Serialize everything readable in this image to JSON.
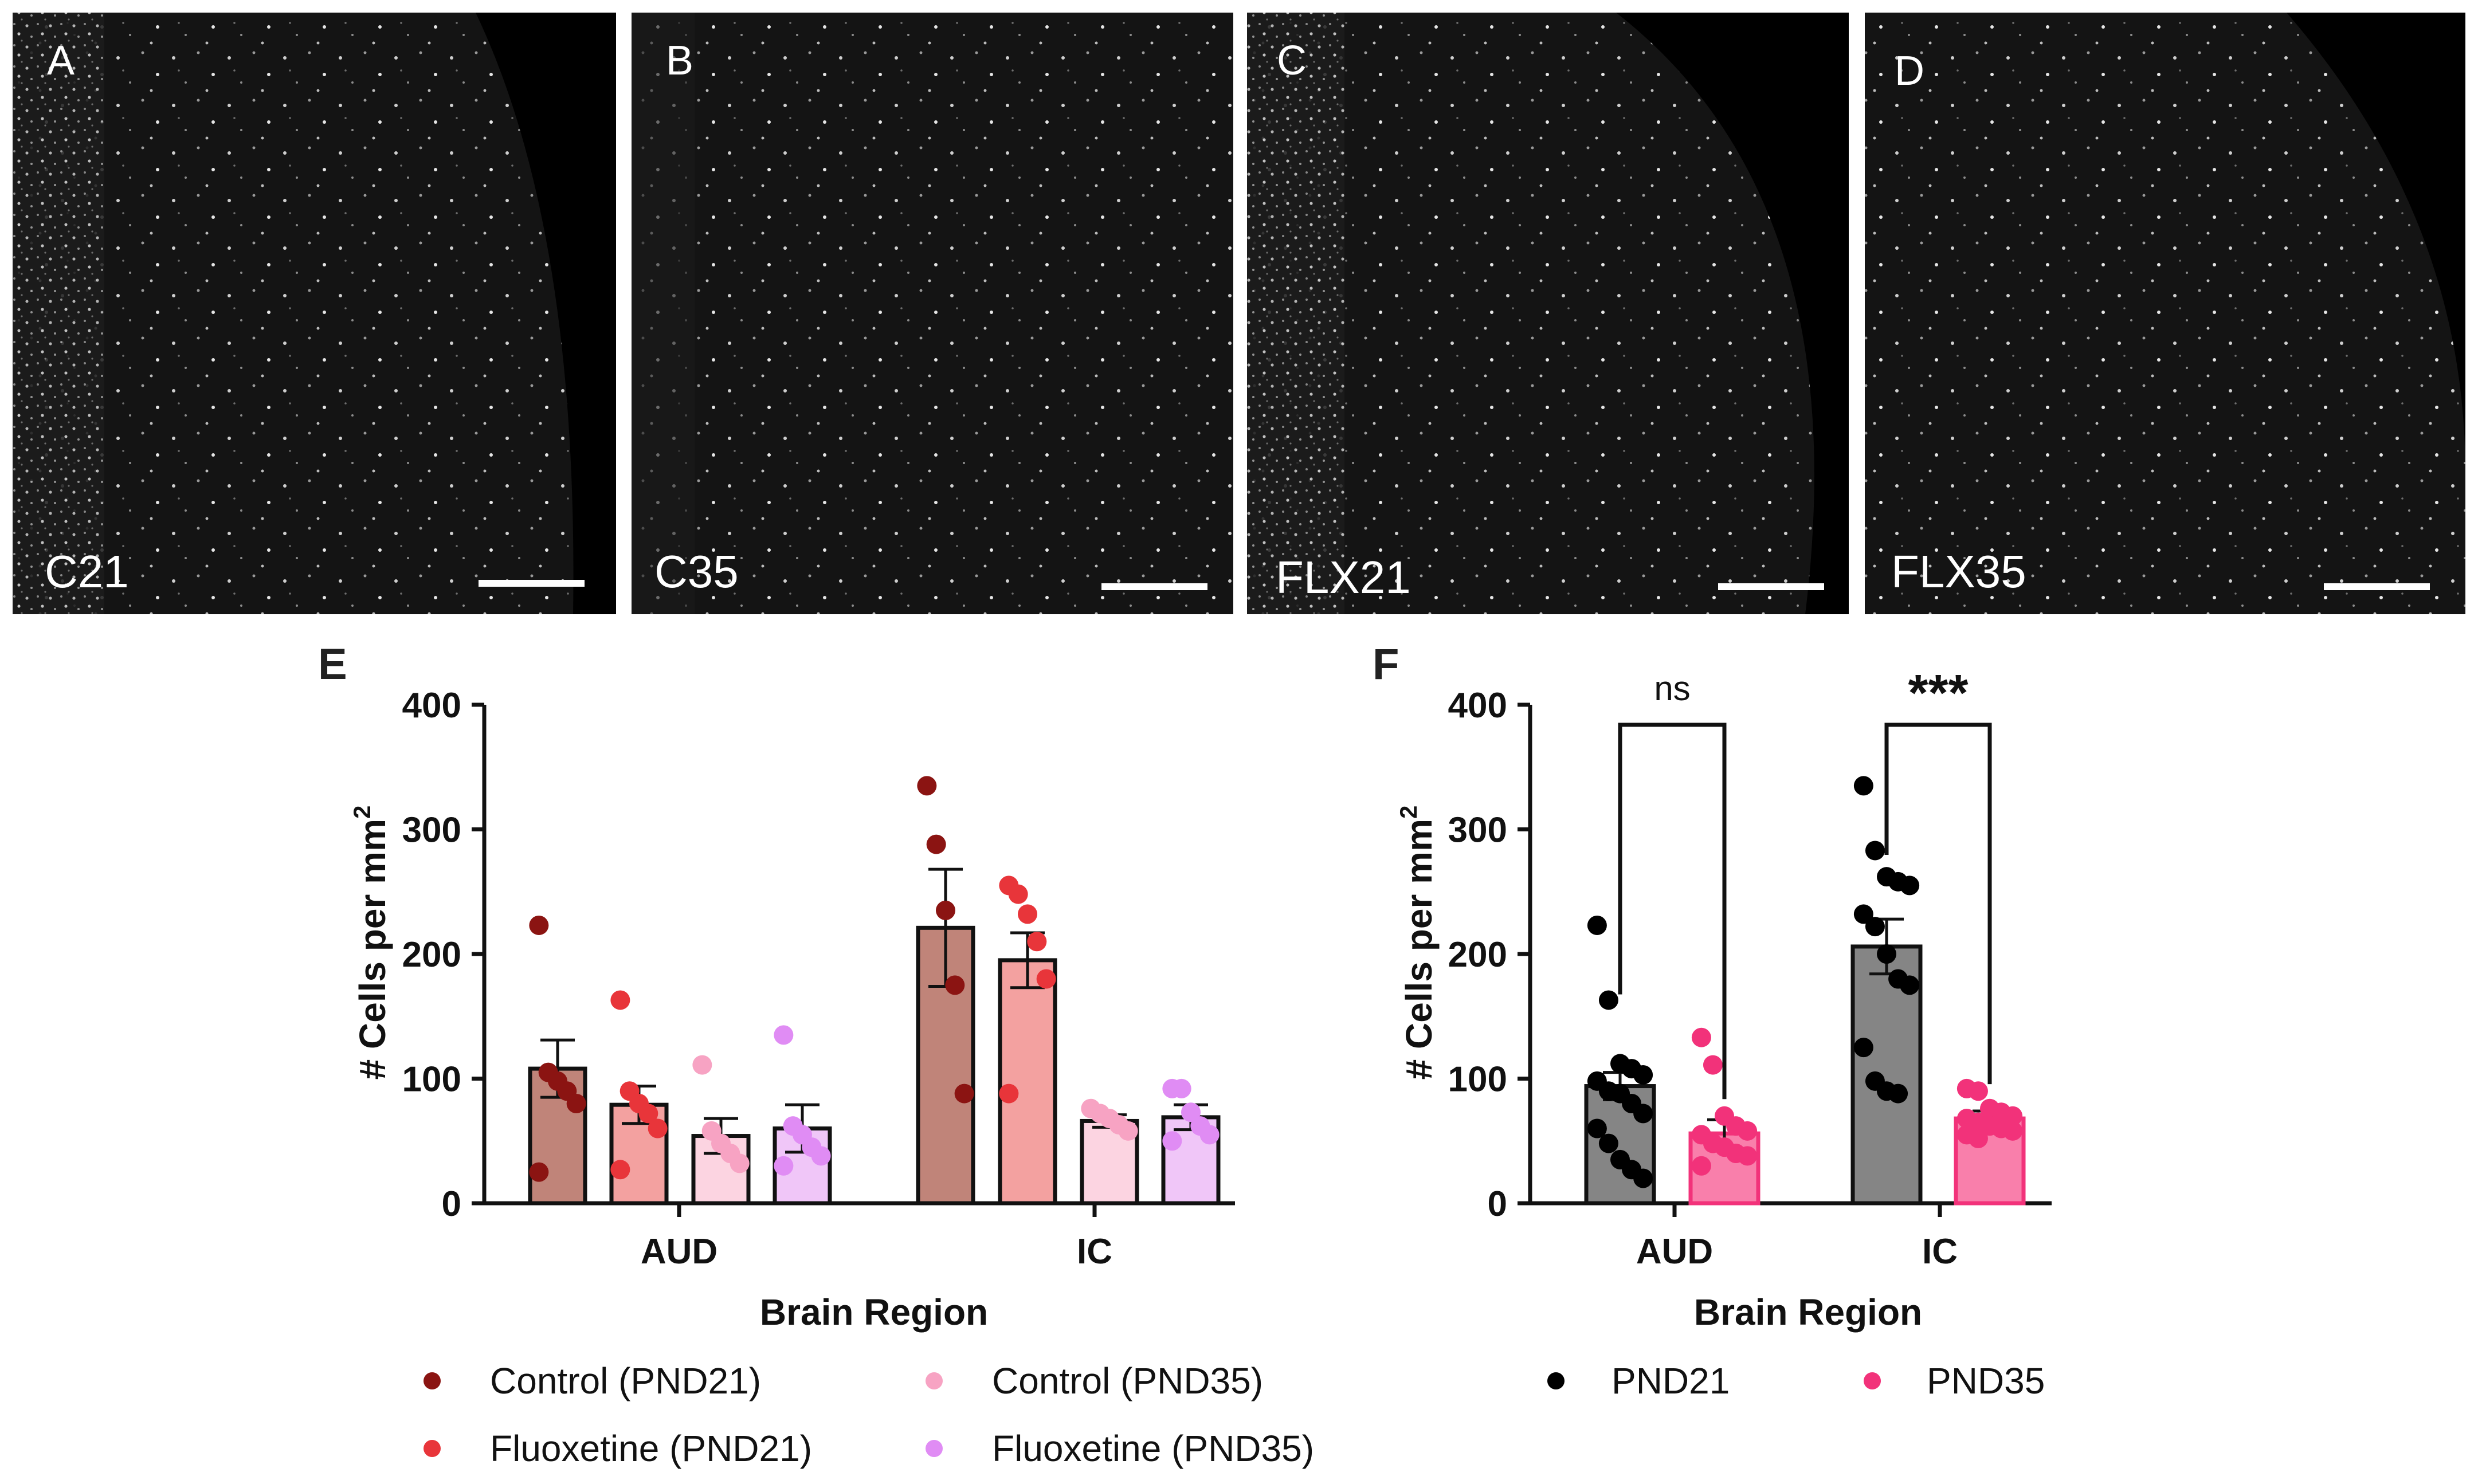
{
  "micrographs": [
    {
      "panel": "A",
      "label": "C21"
    },
    {
      "panel": "B",
      "label": "C35"
    },
    {
      "panel": "C",
      "label": "FLX21"
    },
    {
      "panel": "D",
      "label": "FLX35"
    }
  ],
  "colors": {
    "control21": "#8b1412",
    "control21_bar": "#c08479",
    "fluoxetine21": "#e8353a",
    "fluoxetine21_bar": "#f3a1a0",
    "control35": "#f7a3c3",
    "control35_bar": "#fcd4e1",
    "fluoxetine35": "#e08cf4",
    "fluoxetine35_bar": "#f0c6f8",
    "pnd21": "#000000",
    "pnd21_bar": "#858585",
    "pnd35": "#f2327a",
    "pnd35_bar": "#f97fab"
  },
  "chart_data": [
    {
      "panel": "E",
      "type": "bar",
      "title": "",
      "xlabel": "Brain Region",
      "ylabel": "# Cells per mm",
      "ylabel_superscript": "2",
      "ylim": [
        0,
        400
      ],
      "yticks": [
        0,
        100,
        200,
        300,
        400
      ],
      "categories": [
        "AUD",
        "IC"
      ],
      "legend_position": "below",
      "series": [
        {
          "name": "Control (PND21)",
          "values": [
            108,
            221
          ],
          "sem": [
            23,
            47
          ],
          "points": [
            [
              223,
              105,
              98,
              90,
              80,
              25
            ],
            [
              335,
              288,
              235,
              175,
              88
            ]
          ]
        },
        {
          "name": "Fluoxetine (PND21)",
          "values": [
            79,
            195
          ],
          "sem": [
            15,
            22
          ],
          "points": [
            [
              163,
              90,
              80,
              72,
              60,
              27
            ],
            [
              255,
              248,
              232,
              210,
              180,
              88
            ]
          ]
        },
        {
          "name": "Control (PND35)",
          "values": [
            54,
            66
          ],
          "sem": [
            14,
            5
          ],
          "points": [
            [
              111,
              58,
              48,
              40,
              32
            ],
            [
              76,
              72,
              68,
              63,
              58
            ]
          ]
        },
        {
          "name": "Fluoxetine (PND35)",
          "values": [
            60,
            69
          ],
          "sem": [
            19,
            10
          ],
          "points": [
            [
              135,
              62,
              55,
              45,
              38,
              30
            ],
            [
              92,
              92,
              73,
              62,
              55,
              50
            ]
          ]
        }
      ]
    },
    {
      "panel": "F",
      "type": "bar",
      "title": "",
      "xlabel": "Brain Region",
      "ylabel": "# Cells per mm",
      "ylabel_superscript": "2",
      "ylim": [
        0,
        400
      ],
      "yticks": [
        0,
        100,
        200,
        300,
        400
      ],
      "categories": [
        "AUD",
        "IC"
      ],
      "legend_position": "below",
      "annotations": [
        "ns",
        "***"
      ],
      "series": [
        {
          "name": "PND21",
          "values": [
            94,
            206
          ],
          "sem": [
            11,
            22
          ],
          "points": [
            [
              223,
              163,
              112,
              108,
              103,
              98,
              90,
              88,
              80,
              72,
              60,
              48,
              35,
              27,
              20
            ],
            [
              335,
              283,
              262,
              258,
              255,
              232,
              222,
              200,
              180,
              175,
              125,
              98,
              90,
              88
            ]
          ]
        },
        {
          "name": "PND35",
          "values": [
            56,
            68
          ],
          "sem": [
            11,
            6
          ],
          "points": [
            [
              133,
              111,
              70,
              62,
              58,
              55,
              48,
              45,
              40,
              38,
              30
            ],
            [
              92,
              90,
              76,
              73,
              70,
              68,
              65,
              62,
              60,
              58,
              55,
              52
            ]
          ]
        }
      ]
    }
  ]
}
